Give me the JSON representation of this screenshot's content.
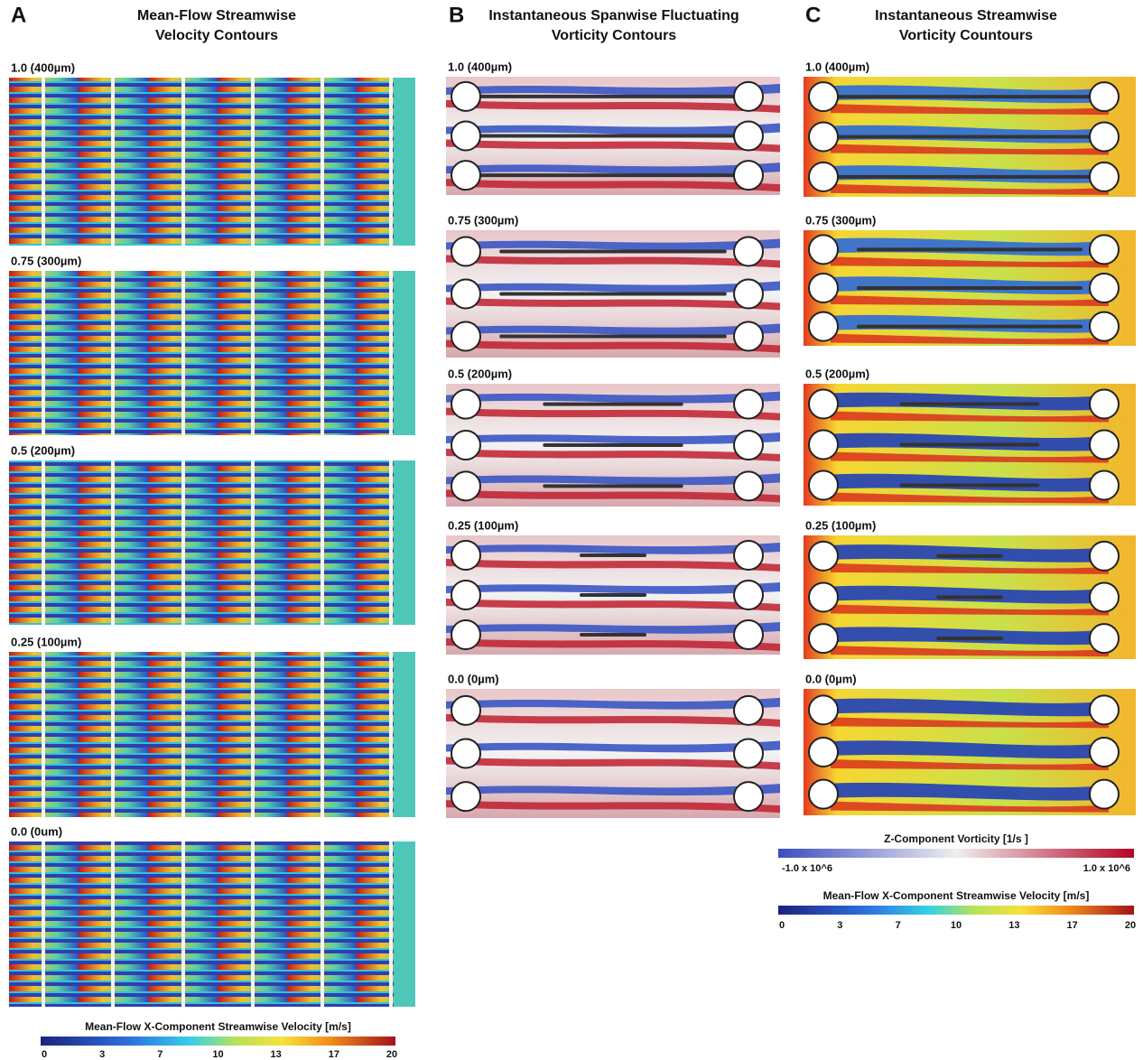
{
  "panels": [
    {
      "letter": "A",
      "title": [
        "Mean-Flow Streamwise",
        "Velocity Contours"
      ],
      "subplots": [
        "1.0 (400µm)",
        "0.75 (300µm)",
        "0.5 (200µm)",
        "0.25 (100µm)",
        "0.0 (0um)"
      ]
    },
    {
      "letter": "B",
      "title": [
        "Instantaneous Spanwise Fluctuating",
        "Vorticity Contours"
      ],
      "subplots": [
        "1.0 (400µm)",
        "0.75 (300µm)",
        "0.5 (200µm)",
        "0.25 (100µm)",
        "0.0 (0µm)"
      ]
    },
    {
      "letter": "C",
      "title": [
        "Instantaneous Streamwise",
        "Vorticity Countours"
      ],
      "subplots": [
        "1.0 (400µm)",
        "0.75 (300µm)",
        "0.5 (200µm)",
        "0.25 (100µm)",
        "0.0 (0µm)"
      ]
    }
  ],
  "colorbars": [
    {
      "title": "Mean-Flow X-Component Streamwise Velocity [m/s]",
      "ticks": [
        "0",
        "3",
        "7",
        "10",
        "13",
        "17",
        "20"
      ]
    },
    {
      "title": "Z-Component Vorticity [1/s ]",
      "ticks": [
        "-1.0 x 10^6",
        "1.0 x 10^6"
      ]
    },
    {
      "title": "Mean-Flow X-Component Streamwise Velocity [m/s]",
      "ticks": [
        "0",
        "3",
        "7",
        "10",
        "13",
        "17",
        "20"
      ]
    }
  ]
}
